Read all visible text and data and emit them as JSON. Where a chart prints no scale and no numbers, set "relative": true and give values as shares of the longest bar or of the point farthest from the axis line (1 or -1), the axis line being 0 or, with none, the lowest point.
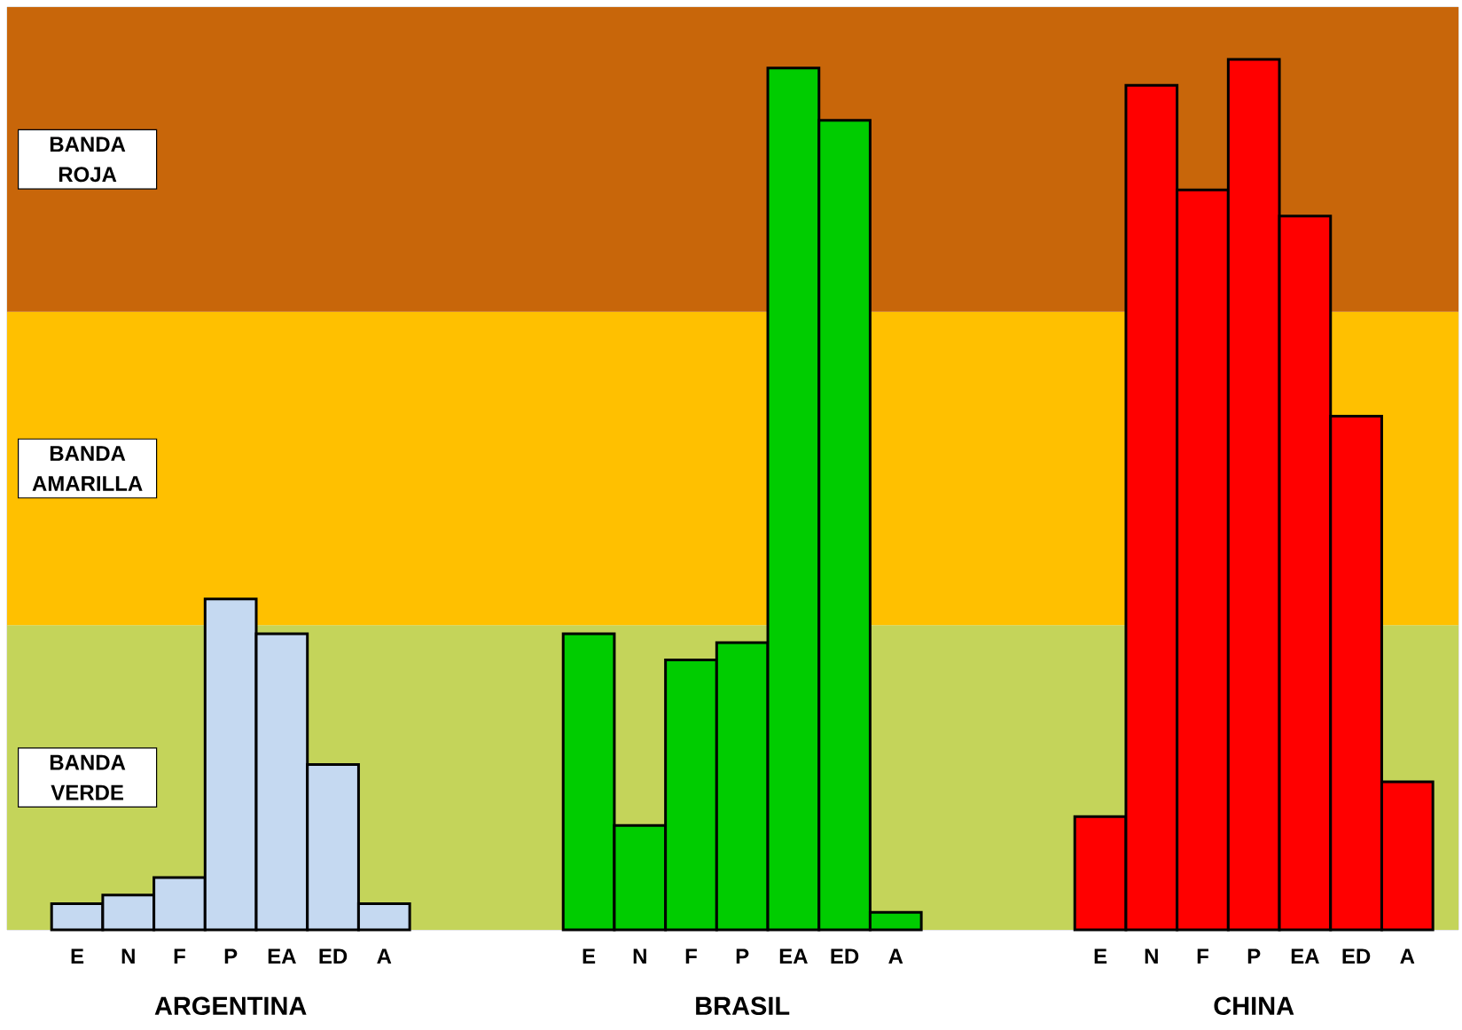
{
  "chart_data": {
    "type": "bar",
    "relative": true,
    "categories": [
      "E",
      "N",
      "F",
      "P",
      "EA",
      "ED",
      "A",
      null,
      null,
      null,
      "E",
      "N",
      "F",
      "P",
      "EA",
      "ED",
      "A",
      null,
      null,
      null,
      "E",
      "N",
      "F",
      "P",
      "EA",
      "ED",
      "A"
    ],
    "series": [
      {
        "name": "ARGENTINA",
        "color": "#c5d9f1",
        "values": [
          0.03,
          0.04,
          0.06,
          0.38,
          0.34,
          0.19,
          0.03,
          null,
          null,
          null,
          null,
          null,
          null,
          null,
          null,
          null,
          null,
          null,
          null,
          null,
          null,
          null,
          null,
          null,
          null,
          null,
          null
        ]
      },
      {
        "name": "BRASIL",
        "color": "#00cc00",
        "values": [
          null,
          null,
          null,
          null,
          null,
          null,
          null,
          null,
          null,
          null,
          0.34,
          0.12,
          0.31,
          0.33,
          0.99,
          0.93,
          0.02,
          null,
          null,
          null,
          null,
          null,
          null,
          null,
          null,
          null,
          null
        ]
      },
      {
        "name": "CHINA",
        "color": "#ff0000",
        "values": [
          null,
          null,
          null,
          null,
          null,
          null,
          null,
          null,
          null,
          null,
          null,
          null,
          null,
          null,
          null,
          null,
          null,
          null,
          null,
          null,
          0.13,
          0.97,
          0.85,
          1.0,
          0.82,
          0.59,
          0.17
        ]
      }
    ],
    "bands": [
      {
        "axis": "y",
        "from": 0,
        "to": 0.35,
        "label": "BANDA VERDE",
        "color": "#c4d45a"
      },
      {
        "axis": "y",
        "from": 0.35,
        "to": 0.71,
        "label": "BANDA AMARILLA",
        "color": "#ffc000"
      },
      {
        "axis": "y",
        "from": 0.71,
        "to": 1.06,
        "label": "BANDA ROJA",
        "color": "#c8660a"
      }
    ]
  }
}
